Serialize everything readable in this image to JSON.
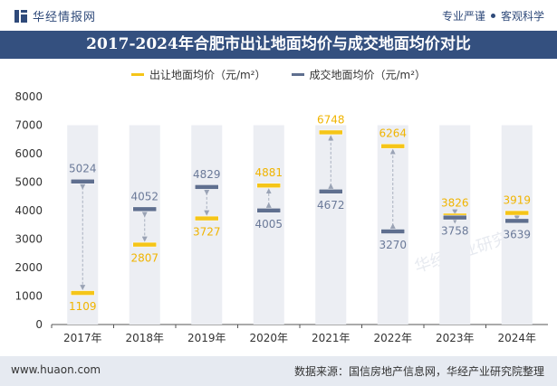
{
  "header": {
    "brand": "华经情报网",
    "tagline_left": "专业严谨",
    "tagline_right": "客观科学"
  },
  "colors": {
    "title_bg": "#34507f",
    "series1": "#f5c518",
    "series2": "#5f6f8f",
    "band": "#eceef3",
    "label1": "#f0b400",
    "label2": "#6b7a99"
  },
  "chart_data": {
    "type": "dot-range",
    "title": "2017-2024年合肥市出让地面均价与成交地面均价对比",
    "categories": [
      "2017年",
      "2018年",
      "2019年",
      "2020年",
      "2021年",
      "2022年",
      "2023年",
      "2024年"
    ],
    "series": [
      {
        "name": "出让地面均价（元/m²）",
        "values": [
          1109,
          2807,
          3727,
          4881,
          6748,
          6264,
          3826,
          3919
        ]
      },
      {
        "name": "成交地面均价（元/m²）",
        "values": [
          5024,
          4052,
          4829,
          4005,
          4672,
          3270,
          3758,
          3639
        ]
      }
    ],
    "ylim": [
      0,
      8000
    ],
    "yticks": [
      "0",
      "1000",
      "2000",
      "3000",
      "4000",
      "5000",
      "6000",
      "7000",
      "8000"
    ],
    "band_top": 7000
  },
  "watermark": "华经产业研究院",
  "footer": {
    "url": "www.huaon.com",
    "source": "数据来源：国信房地产信息网，华经产业研究院整理"
  }
}
